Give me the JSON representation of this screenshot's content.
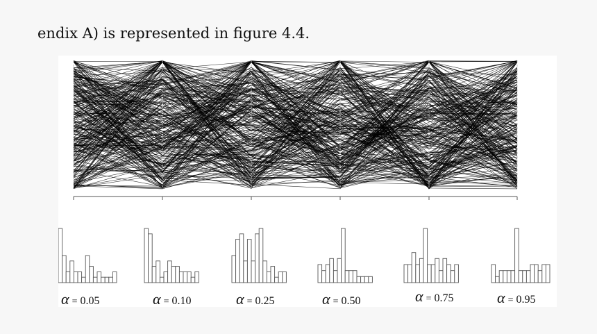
{
  "page": {
    "text": "endix A) is represented in figure 4.4."
  },
  "figure": {
    "panels": [
      {
        "symbol": "α",
        "equals": "=",
        "value": "0.05"
      },
      {
        "symbol": "α",
        "equals": "=",
        "value": "0.10"
      },
      {
        "symbol": "α",
        "equals": "=",
        "value": "0.25"
      },
      {
        "symbol": "α",
        "equals": "=",
        "value": "0.50"
      },
      {
        "symbol": "α",
        "equals": "=",
        "value": "0.75"
      },
      {
        "symbol": "α",
        "equals": "=",
        "value": "0.95"
      }
    ]
  },
  "chart_data": [
    {
      "type": "parallel-coordinates",
      "axes": [
        "α = 0.05",
        "α = 0.10",
        "α = 0.25",
        "α = 0.50",
        "α = 0.75",
        "α = 0.95"
      ],
      "line_count_estimate": 300,
      "line_color": "#000000",
      "grid": false
    },
    {
      "type": "bar",
      "histograms": [
        {
          "label": "α = 0.05",
          "values": [
            10,
            5,
            2,
            4,
            2,
            2,
            1,
            5,
            3,
            1,
            2,
            1,
            1,
            1,
            2
          ]
        },
        {
          "label": "α = 0.10",
          "values": [
            10,
            9,
            3,
            4,
            1,
            2,
            4,
            3,
            3,
            2,
            2,
            2,
            1,
            2
          ]
        },
        {
          "label": "α = 0.25",
          "values": [
            5,
            8,
            9,
            4,
            8,
            4,
            9,
            10,
            4,
            2,
            3,
            1,
            2,
            2
          ]
        },
        {
          "label": "α = 0.50",
          "values": [
            3,
            2,
            3,
            4,
            2,
            4,
            9,
            2,
            2,
            2,
            1,
            1,
            1,
            1
          ]
        },
        {
          "label": "α = 0.75",
          "values": [
            3,
            3,
            5,
            3,
            4,
            9,
            3,
            3,
            4,
            2,
            4,
            3,
            2,
            3
          ]
        },
        {
          "label": "α = 0.95",
          "values": [
            3,
            1,
            2,
            2,
            2,
            2,
            9,
            2,
            2,
            2,
            3,
            3,
            2,
            3,
            3
          ]
        }
      ]
    }
  ]
}
